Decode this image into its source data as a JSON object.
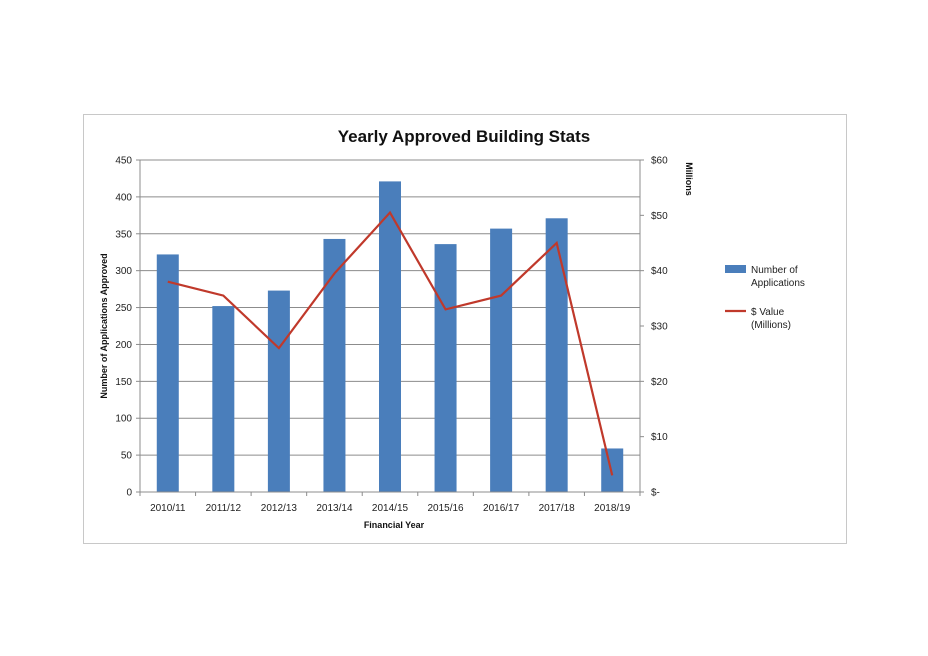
{
  "chart_data": {
    "type": "bar",
    "title": "Yearly Approved Building Stats",
    "xlabel": "Financial  Year",
    "ylabel": "Number of Applications Approved",
    "y2label": "Millions",
    "ylim": [
      0,
      450
    ],
    "y2lim": [
      0,
      60
    ],
    "yticks": [
      0,
      50,
      100,
      150,
      200,
      250,
      300,
      350,
      400,
      450
    ],
    "yticklabels": [
      "0",
      "50",
      "100",
      "150",
      "200",
      "250",
      "300",
      "350",
      "400",
      "450"
    ],
    "y2ticks": [
      0,
      10,
      20,
      30,
      40,
      50,
      60
    ],
    "y2ticklabels": [
      "$-",
      "$10",
      "$20",
      "$30",
      "$40",
      "$50",
      "$60"
    ],
    "grid": true,
    "legend_position": "right",
    "categories": [
      "2010/11",
      "2011/12",
      "2012/13",
      "2013/14",
      "2014/15",
      "2015/16",
      "2016/17",
      "2017/18",
      "2018/19"
    ],
    "series": [
      {
        "name": "Number of Applications",
        "legend_lines": [
          "Number of",
          "Applications"
        ],
        "type": "bar",
        "axis": "left",
        "color": "#4a7ebb",
        "values": [
          322,
          252,
          273,
          343,
          421,
          336,
          357,
          371,
          59
        ]
      },
      {
        "name": "$ Value (Millions)",
        "legend_lines": [
          "$ Value",
          "(Millions)"
        ],
        "type": "line",
        "axis": "right",
        "color": "#c0392b",
        "values": [
          38,
          35.5,
          26,
          39.5,
          50.5,
          33,
          35.5,
          45,
          3
        ]
      }
    ]
  }
}
